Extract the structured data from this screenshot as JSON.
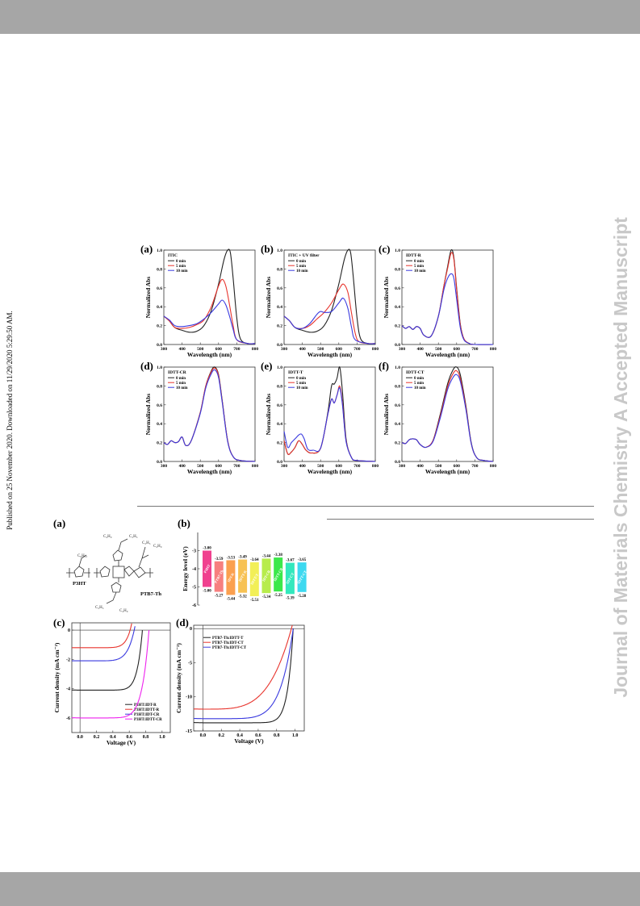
{
  "side": {
    "published": "Published on 25 November 2020. Downloaded on 11/29/2020 5:29:50 AM.",
    "journal": "Journal of Materials Chemistry A Accepted Manuscript"
  },
  "fig1": {
    "panels": [
      {
        "letter": "(a)",
        "title": "ITIC",
        "legend": [
          "0 min",
          "5 min",
          "10 min"
        ]
      },
      {
        "letter": "(b)",
        "title": "ITIC + UV filter",
        "legend": [
          "0 min",
          "5 min",
          "10 min"
        ]
      },
      {
        "letter": "(c)",
        "title": "IDTT-R",
        "legend": [
          "0 min",
          "5 min",
          "10 min"
        ]
      },
      {
        "letter": "(d)",
        "title": "IDTT-CR",
        "legend": [
          "0 min",
          "5 min",
          "10 min"
        ]
      },
      {
        "letter": "(e)",
        "title": "IDTT-T",
        "legend": [
          "0 min",
          "5 min",
          "10 min"
        ]
      },
      {
        "letter": "(f)",
        "title": "IDTT-CT",
        "legend": [
          "0 min",
          "5 min",
          "10 min"
        ]
      }
    ],
    "xlabel": "Wavelength (nm)",
    "ylabel": "Normalized Abs",
    "xticks": [
      "300",
      "400",
      "500",
      "600",
      "700",
      "800"
    ],
    "yticks": [
      "0.0",
      "0.2",
      "0.4",
      "0.6",
      "0.8",
      "1.0"
    ]
  },
  "fig2": {
    "a": {
      "letter": "(a)",
      "p3ht": "P3HT",
      "ptb7": "PTB7-Th"
    },
    "b": {
      "letter": "(b)",
      "ylabel": "Energy level (eV)"
    },
    "c": {
      "letter": "(c)",
      "ylabel": "Current density (mA cm⁻²)",
      "xlabel": "Voltage (V)"
    },
    "d": {
      "letter": "(d)",
      "ylabel": "Current density (mA cm⁻²)",
      "xlabel": "Voltage (V)"
    }
  },
  "chart_data": [
    {
      "type": "line",
      "title": "ITIC",
      "xlabel": "Wavelength (nm)",
      "ylabel": "Normalized Abs",
      "xlim": [
        300,
        800
      ],
      "ylim": [
        0,
        1.0
      ],
      "series": [
        {
          "name": "0 min",
          "color": "#222222",
          "x": [
            300,
            330,
            360,
            400,
            440,
            480,
            520,
            560,
            600,
            630,
            650,
            665,
            680,
            700,
            720,
            760,
            800
          ],
          "y": [
            0.3,
            0.25,
            0.18,
            0.15,
            0.13,
            0.14,
            0.2,
            0.36,
            0.64,
            0.9,
            1.0,
            0.97,
            0.7,
            0.28,
            0.06,
            0.01,
            0.01
          ]
        },
        {
          "name": "5 min",
          "color": "#e8352e",
          "x": [
            300,
            330,
            360,
            400,
            440,
            480,
            520,
            560,
            600,
            620,
            640,
            660,
            680,
            700,
            760,
            800
          ],
          "y": [
            0.3,
            0.25,
            0.18,
            0.17,
            0.18,
            0.21,
            0.26,
            0.4,
            0.62,
            0.69,
            0.62,
            0.42,
            0.2,
            0.05,
            0.01,
            0.01
          ]
        },
        {
          "name": "10 min",
          "color": "#3a3adf",
          "x": [
            300,
            330,
            360,
            400,
            440,
            480,
            520,
            560,
            600,
            620,
            640,
            660,
            680,
            700,
            760,
            800
          ],
          "y": [
            0.3,
            0.26,
            0.2,
            0.19,
            0.2,
            0.22,
            0.27,
            0.34,
            0.43,
            0.47,
            0.42,
            0.3,
            0.16,
            0.05,
            0.01,
            0.01
          ]
        }
      ]
    },
    {
      "type": "line",
      "title": "ITIC + UV filter",
      "xlabel": "Wavelength (nm)",
      "ylabel": "Normalized Abs",
      "xlim": [
        300,
        800
      ],
      "ylim": [
        0,
        1.0
      ],
      "series": [
        {
          "name": "0 min",
          "color": "#222222",
          "x": [
            300,
            330,
            360,
            400,
            440,
            480,
            520,
            560,
            600,
            630,
            650,
            665,
            680,
            700,
            720,
            760,
            800
          ],
          "y": [
            0.3,
            0.25,
            0.18,
            0.15,
            0.13,
            0.14,
            0.2,
            0.36,
            0.64,
            0.9,
            1.0,
            0.97,
            0.7,
            0.28,
            0.06,
            0.01,
            0.01
          ]
        },
        {
          "name": "5 min",
          "color": "#e8352e",
          "x": [
            300,
            330,
            360,
            400,
            440,
            480,
            520,
            560,
            600,
            625,
            650,
            670,
            690,
            710,
            760,
            800
          ],
          "y": [
            0.3,
            0.25,
            0.18,
            0.17,
            0.2,
            0.27,
            0.34,
            0.44,
            0.58,
            0.64,
            0.55,
            0.33,
            0.12,
            0.03,
            0.01,
            0.01
          ]
        },
        {
          "name": "10 min",
          "color": "#3a3adf",
          "x": [
            300,
            330,
            360,
            400,
            440,
            480,
            500,
            520,
            560,
            600,
            625,
            650,
            670,
            690,
            760,
            800
          ],
          "y": [
            0.3,
            0.25,
            0.18,
            0.17,
            0.22,
            0.32,
            0.35,
            0.34,
            0.35,
            0.44,
            0.49,
            0.38,
            0.18,
            0.05,
            0.01,
            0.01
          ]
        }
      ]
    },
    {
      "type": "line",
      "title": "IDTT-R",
      "xlabel": "Wavelength (nm)",
      "ylabel": "Normalized Abs",
      "xlim": [
        300,
        800
      ],
      "ylim": [
        0,
        1.0
      ],
      "series": [
        {
          "name": "0 min",
          "color": "#222222",
          "x": [
            300,
            320,
            340,
            360,
            380,
            400,
            420,
            460,
            500,
            530,
            550,
            570,
            585,
            600,
            620,
            640,
            670,
            700,
            800
          ],
          "y": [
            0.2,
            0.17,
            0.19,
            0.16,
            0.19,
            0.17,
            0.1,
            0.09,
            0.3,
            0.62,
            0.82,
            1.0,
            0.92,
            0.6,
            0.22,
            0.06,
            0.01,
            0.0,
            0.0
          ]
        },
        {
          "name": "5 min",
          "color": "#e8352e",
          "x": [
            300,
            320,
            340,
            360,
            380,
            400,
            420,
            460,
            500,
            530,
            550,
            570,
            585,
            600,
            620,
            640,
            670,
            700,
            800
          ],
          "y": [
            0.2,
            0.17,
            0.19,
            0.16,
            0.19,
            0.17,
            0.1,
            0.09,
            0.3,
            0.62,
            0.8,
            0.97,
            0.9,
            0.58,
            0.21,
            0.06,
            0.01,
            0.0,
            0.0
          ]
        },
        {
          "name": "10 min",
          "color": "#3a3adf",
          "x": [
            300,
            320,
            340,
            360,
            380,
            400,
            420,
            460,
            500,
            530,
            550,
            570,
            585,
            600,
            620,
            640,
            670,
            700,
            800
          ],
          "y": [
            0.2,
            0.17,
            0.19,
            0.16,
            0.19,
            0.17,
            0.1,
            0.09,
            0.3,
            0.58,
            0.7,
            0.75,
            0.7,
            0.48,
            0.18,
            0.05,
            0.01,
            0.0,
            0.0
          ]
        }
      ]
    },
    {
      "type": "line",
      "title": "IDTT-CR",
      "xlabel": "Wavelength (nm)",
      "ylabel": "Normalized Abs",
      "xlim": [
        300,
        800
      ],
      "ylim": [
        0,
        1.0
      ],
      "series": [
        {
          "name": "0 min",
          "color": "#222222",
          "x": [
            300,
            320,
            340,
            360,
            380,
            400,
            420,
            450,
            500,
            530,
            560,
            580,
            600,
            620,
            650,
            680,
            720,
            800
          ],
          "y": [
            0.2,
            0.18,
            0.22,
            0.2,
            0.21,
            0.26,
            0.17,
            0.22,
            0.52,
            0.8,
            0.96,
            1.0,
            0.92,
            0.65,
            0.22,
            0.05,
            0.01,
            0.0
          ]
        },
        {
          "name": "5 min",
          "color": "#e8352e",
          "x": [
            300,
            320,
            340,
            360,
            380,
            400,
            420,
            450,
            500,
            530,
            560,
            580,
            600,
            620,
            650,
            680,
            720,
            800
          ],
          "y": [
            0.2,
            0.18,
            0.22,
            0.2,
            0.21,
            0.26,
            0.17,
            0.22,
            0.52,
            0.8,
            0.95,
            0.99,
            0.91,
            0.64,
            0.22,
            0.05,
            0.01,
            0.0
          ]
        },
        {
          "name": "10 min",
          "color": "#3a3adf",
          "x": [
            300,
            320,
            340,
            360,
            380,
            400,
            420,
            450,
            500,
            530,
            560,
            580,
            600,
            620,
            650,
            680,
            720,
            800
          ],
          "y": [
            0.2,
            0.18,
            0.22,
            0.2,
            0.21,
            0.26,
            0.17,
            0.22,
            0.51,
            0.78,
            0.93,
            0.97,
            0.89,
            0.63,
            0.21,
            0.05,
            0.01,
            0.0
          ]
        }
      ]
    },
    {
      "type": "line",
      "title": "IDTT-T",
      "xlabel": "Wavelength (nm)",
      "ylabel": "Normalized Abs",
      "xlim": [
        300,
        800
      ],
      "ylim": [
        0,
        1.0
      ],
      "series": [
        {
          "name": "0 min",
          "color": "#222222",
          "x": [
            300,
            320,
            340,
            360,
            380,
            400,
            420,
            450,
            500,
            540,
            560,
            575,
            590,
            605,
            620,
            640,
            670,
            700,
            800
          ],
          "y": [
            0.22,
            0.08,
            0.1,
            0.15,
            0.22,
            0.18,
            0.12,
            0.09,
            0.14,
            0.52,
            0.8,
            0.82,
            0.88,
            1.0,
            0.74,
            0.24,
            0.04,
            0.01,
            0.0
          ]
        },
        {
          "name": "5 min",
          "color": "#e8352e",
          "x": [
            300,
            320,
            340,
            360,
            380,
            400,
            420,
            450,
            500,
            540,
            560,
            575,
            590,
            605,
            620,
            640,
            670,
            700,
            800
          ],
          "y": [
            0.22,
            0.08,
            0.1,
            0.15,
            0.22,
            0.18,
            0.12,
            0.09,
            0.14,
            0.5,
            0.66,
            0.62,
            0.7,
            0.8,
            0.62,
            0.22,
            0.04,
            0.01,
            0.0
          ]
        },
        {
          "name": "10 min",
          "color": "#3a3adf",
          "x": [
            300,
            320,
            340,
            360,
            380,
            395,
            410,
            430,
            460,
            500,
            540,
            560,
            575,
            590,
            605,
            620,
            640,
            670,
            700,
            800
          ],
          "y": [
            0.32,
            0.15,
            0.2,
            0.24,
            0.28,
            0.29,
            0.24,
            0.13,
            0.12,
            0.14,
            0.5,
            0.66,
            0.62,
            0.7,
            0.78,
            0.6,
            0.21,
            0.04,
            0.01,
            0.0
          ]
        }
      ]
    },
    {
      "type": "line",
      "title": "IDTT-CT",
      "xlabel": "Wavelength (nm)",
      "ylabel": "Normalized Abs",
      "xlim": [
        300,
        800
      ],
      "ylim": [
        0,
        1.0
      ],
      "series": [
        {
          "name": "0 min",
          "color": "#222222",
          "x": [
            300,
            320,
            340,
            360,
            380,
            400,
            430,
            470,
            510,
            550,
            580,
            600,
            620,
            650,
            680,
            710,
            750,
            800
          ],
          "y": [
            0.2,
            0.19,
            0.23,
            0.24,
            0.23,
            0.18,
            0.15,
            0.22,
            0.5,
            0.82,
            0.97,
            1.0,
            0.92,
            0.6,
            0.2,
            0.04,
            0.01,
            0.0
          ]
        },
        {
          "name": "5 min",
          "color": "#e8352e",
          "x": [
            300,
            320,
            340,
            360,
            380,
            400,
            430,
            470,
            510,
            550,
            580,
            600,
            620,
            650,
            680,
            710,
            750,
            800
          ],
          "y": [
            0.2,
            0.19,
            0.23,
            0.24,
            0.23,
            0.18,
            0.15,
            0.22,
            0.48,
            0.79,
            0.93,
            0.96,
            0.88,
            0.58,
            0.19,
            0.04,
            0.01,
            0.0
          ]
        },
        {
          "name": "10 min",
          "color": "#3a3adf",
          "x": [
            300,
            320,
            340,
            360,
            380,
            400,
            430,
            470,
            510,
            550,
            580,
            600,
            620,
            650,
            680,
            710,
            750,
            800
          ],
          "y": [
            0.2,
            0.19,
            0.23,
            0.24,
            0.23,
            0.18,
            0.15,
            0.21,
            0.46,
            0.76,
            0.89,
            0.92,
            0.85,
            0.56,
            0.19,
            0.04,
            0.01,
            0.0
          ]
        }
      ]
    },
    {
      "type": "bar",
      "title": "",
      "ylabel": "Energy level (eV)",
      "ylim": [
        -6,
        -2
      ],
      "series": [
        {
          "name": "P3HT",
          "top": -3.0,
          "bottom": -5.0,
          "color": "#f0418f"
        },
        {
          "name": "PTB7-Th",
          "top": -3.59,
          "bottom": -5.27,
          "color": "#f77f7f"
        },
        {
          "name": "IDT-R",
          "top": -3.53,
          "bottom": -5.44,
          "color": "#fba04f"
        },
        {
          "name": "IDTT-R",
          "top": -3.49,
          "bottom": -5.32,
          "color": "#f7c253"
        },
        {
          "name": "IDTT-T",
          "top": -3.64,
          "bottom": -5.51,
          "color": "#f2ef57"
        },
        {
          "name": "IDT-CR",
          "top": -3.44,
          "bottom": -5.34,
          "color": "#b7ec4c"
        },
        {
          "name": "IDTT-CR",
          "top": -3.38,
          "bottom": -5.25,
          "color": "#3be84a"
        },
        {
          "name": "IDT-CT",
          "top": -3.67,
          "bottom": -5.39,
          "color": "#33e8bd"
        },
        {
          "name": "IDTT-CT",
          "top": -3.65,
          "bottom": -5.28,
          "color": "#3dd9f0"
        }
      ]
    },
    {
      "type": "line",
      "title": "",
      "xlabel": "Voltage (V)",
      "ylabel": "Current density (mA cm⁻²)",
      "xlim": [
        -0.1,
        1.1
      ],
      "ylim": [
        -7,
        0.5
      ],
      "series": [
        {
          "name": "P3HT:IDT-R",
          "color": "#222222",
          "voc": 0.76,
          "jsc": -4.1,
          "n": 12
        },
        {
          "name": "P3HT:IDTT-R",
          "color": "#e8352e",
          "voc": 0.61,
          "jsc": -1.2,
          "n": 10
        },
        {
          "name": "P3HT:IDT-CR",
          "color": "#3a3adf",
          "voc": 0.66,
          "jsc": -2.1,
          "n": 8
        },
        {
          "name": "P3HT:IDTT-CR",
          "color": "#ee22ee",
          "voc": 0.84,
          "jsc": -6.0,
          "n": 10
        }
      ]
    },
    {
      "type": "line",
      "title": "",
      "xlabel": "Voltage (V)",
      "ylabel": "Current density (mA cm⁻²)",
      "xlim": [
        -0.1,
        1.1
      ],
      "ylim": [
        -15,
        0.5
      ],
      "series": [
        {
          "name": "PTB7-Th:IDTT-T",
          "color": "#222222",
          "voc": 0.98,
          "jsc": -13.8,
          "n": 16
        },
        {
          "name": "PTB7-Th:IDT-CT",
          "color": "#e8352e",
          "voc": 0.96,
          "jsc": -11.8,
          "n": 4
        },
        {
          "name": "PTB7-Th:IDTT-CT",
          "color": "#3a3adf",
          "voc": 0.98,
          "jsc": -13.2,
          "n": 7
        }
      ]
    }
  ]
}
